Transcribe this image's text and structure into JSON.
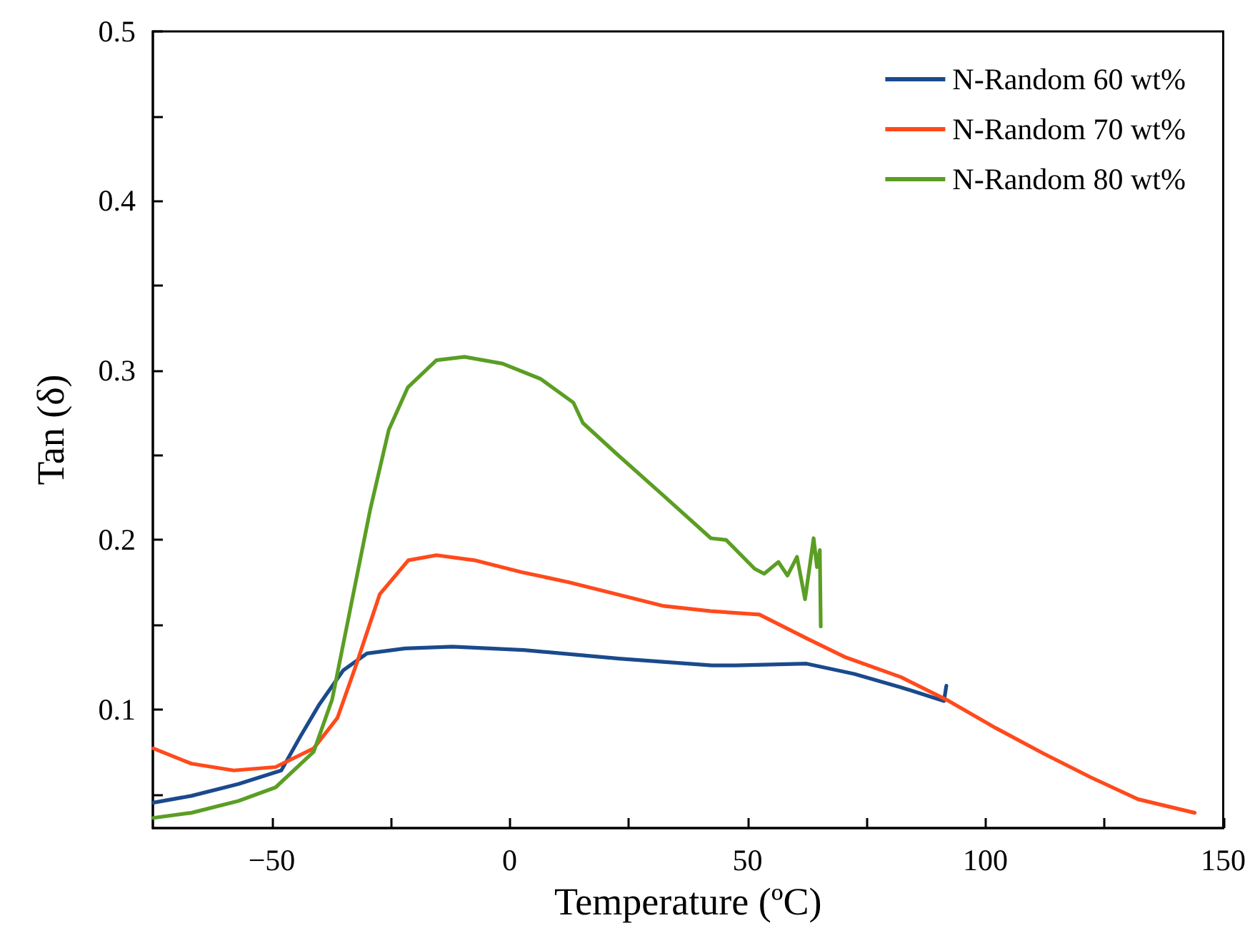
{
  "chart_data": {
    "type": "line",
    "xlabel": "Temperature (ºC)",
    "ylabel": "Tan (δ)",
    "xlim": [
      -75,
      150
    ],
    "xticks": [
      {
        "value": -50,
        "label": "−50"
      },
      {
        "value": -25,
        "label": null
      },
      0,
      {
        "value": 25,
        "label": null
      },
      50,
      {
        "value": 75,
        "label": null
      },
      100,
      {
        "value": 125,
        "label": null
      },
      150
    ],
    "ylim": [
      0.03,
      0.5
    ],
    "yticks": [
      {
        "value": 0.05,
        "label": null
      },
      0.1,
      {
        "value": 0.15,
        "label": null
      },
      0.2,
      {
        "value": 0.25,
        "label": null
      },
      0.3,
      {
        "value": 0.35,
        "label": null
      },
      0.4,
      {
        "value": 0.45,
        "label": null
      },
      0.5
    ],
    "grid": false,
    "legend": "top right",
    "marker": "none",
    "line_style": "solid",
    "series": [
      {
        "name": "N-Random 60 wt%",
        "color": "#1a4a8c",
        "x": [
          -74.9,
          -66.9,
          -57,
          -48,
          -44,
          -40,
          -35,
          -30,
          -22,
          -12,
          3,
          23,
          42.5,
          47.5,
          62.4,
          72.4,
          82.3,
          91.3,
          91.8
        ],
        "values": [
          0.045,
          0.049,
          0.056,
          0.064,
          0.084,
          0.103,
          0.123,
          0.133,
          0.136,
          0.137,
          0.135,
          0.13,
          0.126,
          0.126,
          0.127,
          0.121,
          0.113,
          0.105,
          0.114
        ]
      },
      {
        "name": "N-Random 70 wt%",
        "color": "#ff4a1c",
        "x": [
          -74.9,
          -66.9,
          -58,
          -49.2,
          -41.2,
          -36.2,
          -32.3,
          -27.3,
          -21.3,
          -15.4,
          -7.4,
          2.5,
          12.5,
          22.4,
          32.4,
          42.3,
          52.5,
          62.4,
          70.4,
          82.3,
          92.3,
          102.2,
          112.2,
          122.1,
          132.1,
          144
        ],
        "values": [
          0.077,
          0.068,
          0.064,
          0.066,
          0.077,
          0.095,
          0.126,
          0.168,
          0.188,
          0.191,
          0.188,
          0.181,
          0.175,
          0.168,
          0.161,
          0.158,
          0.156,
          0.142,
          0.131,
          0.119,
          0.105,
          0.089,
          0.074,
          0.06,
          0.047,
          0.039
        ]
      },
      {
        "name": "N-Random 80 wt%",
        "color": "#5a9e24",
        "x": [
          -74.9,
          -66.9,
          -57,
          -49.2,
          -41.2,
          -37.3,
          -33.3,
          -29.3,
          -25.4,
          -21.4,
          -15.4,
          -9.5,
          -1.5,
          6.5,
          13.4,
          15.4,
          22.4,
          32.4,
          42.3,
          45.5,
          51.5,
          53.5,
          56.5,
          58.4,
          60.4,
          62.1,
          63.9,
          64.6,
          65.2,
          65.4
        ],
        "values": [
          0.036,
          0.039,
          0.046,
          0.054,
          0.075,
          0.106,
          0.162,
          0.218,
          0.265,
          0.29,
          0.306,
          0.308,
          0.304,
          0.295,
          0.281,
          0.269,
          0.251,
          0.226,
          0.201,
          0.2,
          0.183,
          0.18,
          0.187,
          0.179,
          0.19,
          0.165,
          0.201,
          0.184,
          0.194,
          0.149
        ]
      }
    ]
  }
}
